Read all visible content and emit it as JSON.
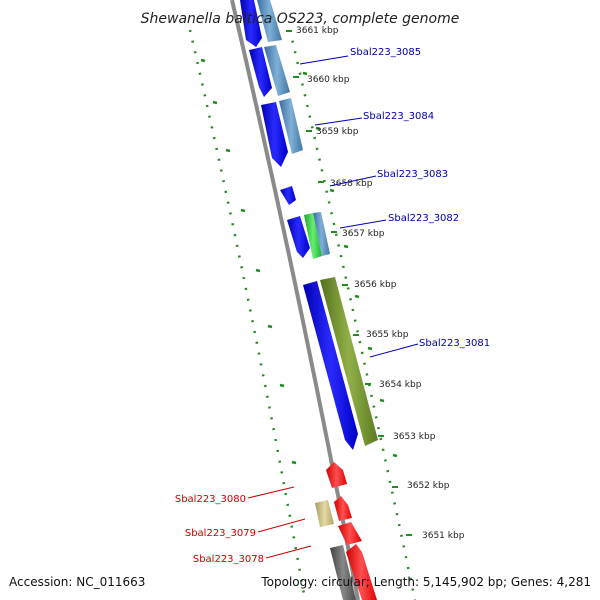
{
  "title": "Shewanella baltica OS223, complete genome",
  "footer": {
    "accession": "Accession: NC_011663",
    "summary": "Topology: circular; Length: 5,145,902 bp; Genes: 4,281"
  },
  "kbp_labels": [
    "3661 kbp",
    "3660 kbp",
    "3659 kbp",
    "3658 kbp",
    "3657 kbp",
    "3656 kbp",
    "3655 kbp",
    "3654 kbp",
    "3653 kbp",
    "3652 kbp",
    "3651 kbp"
  ],
  "gene_labels": {
    "g3085": "Sbal223_3085",
    "g3084": "Sbal223_3084",
    "g3083": "Sbal223_3083",
    "g3082": "Sbal223_3082",
    "g3081": "Sbal223_3081",
    "g3080": "Sbal223_3080",
    "g3079": "Sbal223_3079",
    "g3078": "Sbal223_3078"
  },
  "colors": {
    "backbone": "#8a8a8a",
    "forward_cds": "#0000ee",
    "forward_feature": "#4a86b8",
    "green_feature": "#2ecc40",
    "olive_feature": "#6b8a2a",
    "reverse_cds": "#ff1010",
    "tan_feature": "#c8bb80",
    "grey_feature": "#555555",
    "gc_ticks": "#228b22",
    "label_blue": "#0000aa",
    "label_red": "#cc0000"
  }
}
